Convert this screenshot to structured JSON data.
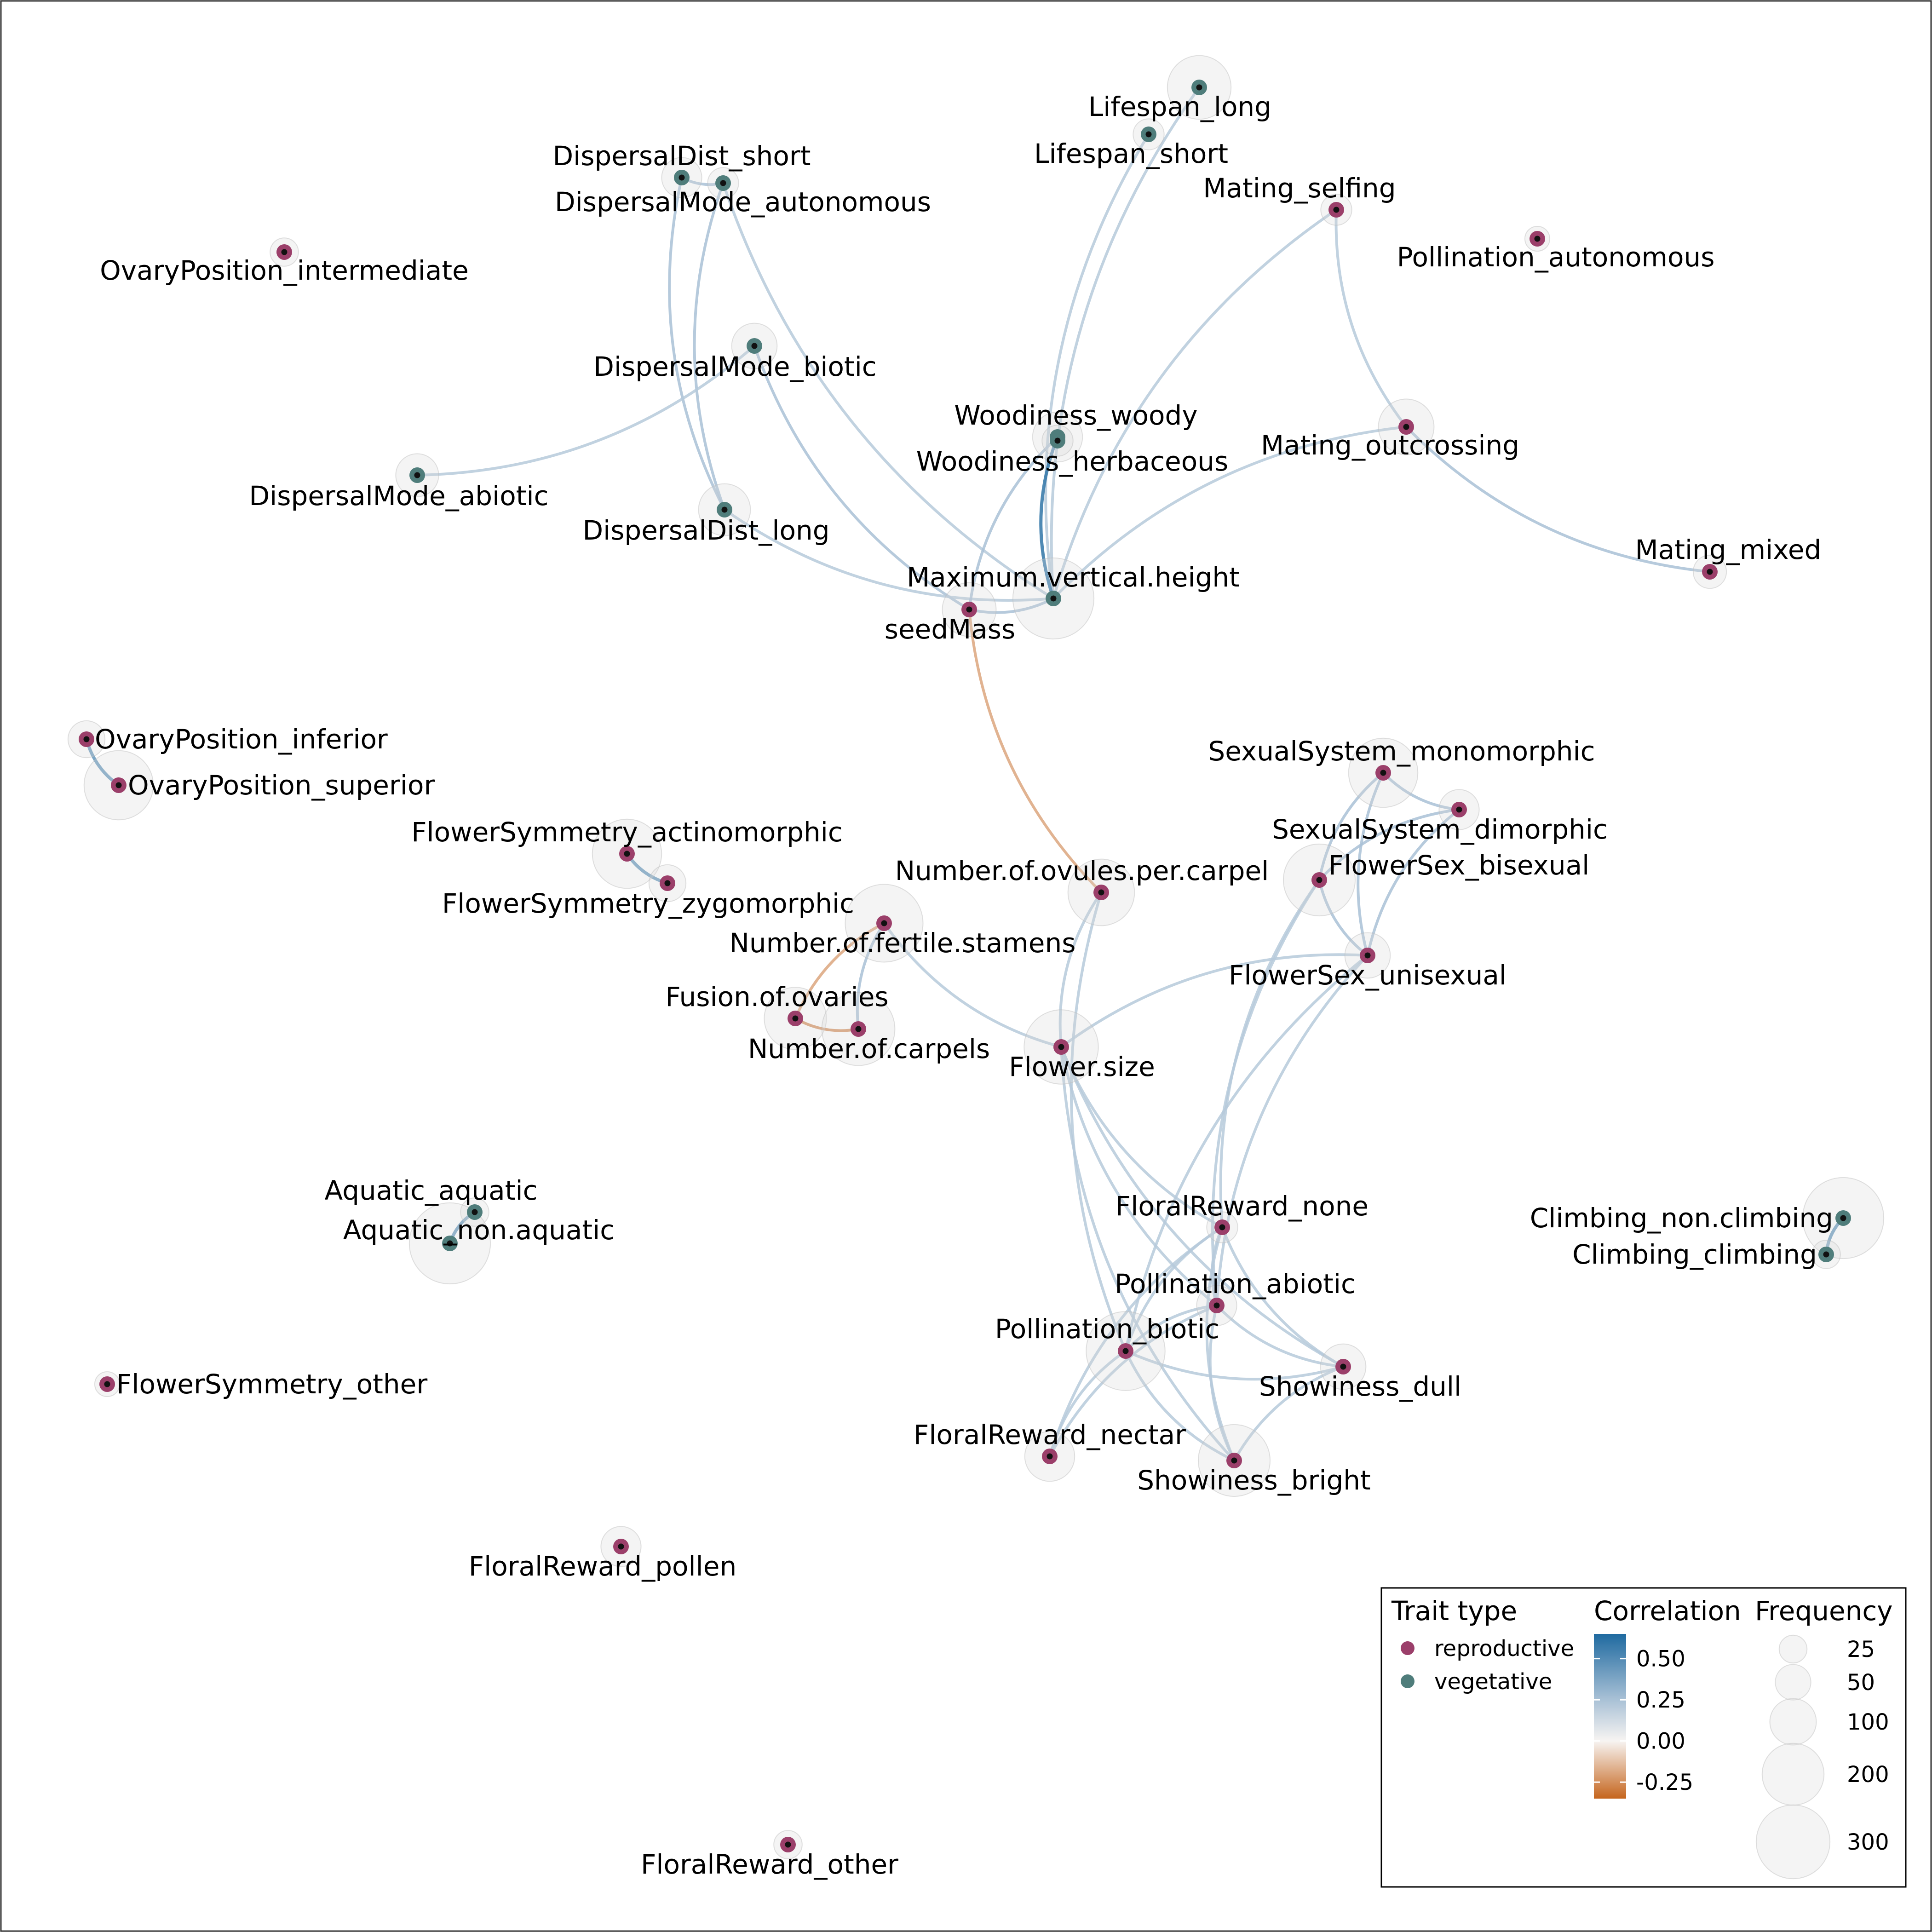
{
  "colors": {
    "reproductive": "#9b3f6a",
    "vegetative": "#4f7d7b",
    "corr_high": "#1f6aa0",
    "corr_mid": "#a9c1d6",
    "corr_zero": "#f7f4f2",
    "corr_low": "#c5651d"
  },
  "nodes": [
    {
      "id": "OvaryPosition_intermediate",
      "label": "OvaryPosition_intermediate",
      "type": "reproductive",
      "frequency": 10
    },
    {
      "id": "DispersalDist_short",
      "label": "DispersalDist_short",
      "type": "vegetative",
      "frequency": 40
    },
    {
      "id": "DispersalMode_autonomous",
      "label": "DispersalMode_autonomous",
      "type": "vegetative",
      "frequency": 15
    },
    {
      "id": "DispersalMode_biotic",
      "label": "DispersalMode_biotic",
      "type": "vegetative",
      "frequency": 60
    },
    {
      "id": "DispersalMode_abiotic",
      "label": "DispersalMode_abiotic",
      "type": "vegetative",
      "frequency": 50
    },
    {
      "id": "DispersalDist_long",
      "label": "DispersalDist_long",
      "type": "vegetative",
      "frequency": 90
    },
    {
      "id": "Lifespan_long",
      "label": "Lifespan_long",
      "type": "vegetative",
      "frequency": 160
    },
    {
      "id": "Lifespan_short",
      "label": "Lifespan_short",
      "type": "vegetative",
      "frequency": 15
    },
    {
      "id": "Mating_selfing",
      "label": "Mating_selfing",
      "type": "reproductive",
      "frequency": 15
    },
    {
      "id": "Pollination_autonomous",
      "label": "Pollination_autonomous",
      "type": "reproductive",
      "frequency": 5
    },
    {
      "id": "Woodiness_woody",
      "label": "Woodiness_woody",
      "type": "vegetative",
      "frequency": 80
    },
    {
      "id": "Woodiness_herbaceous",
      "label": "Woodiness_herbaceous",
      "type": "vegetative",
      "frequency": 15
    },
    {
      "id": "Mating_outcrossing",
      "label": "Mating_outcrossing",
      "type": "reproductive",
      "frequency": 110
    },
    {
      "id": "Maximum.vertical.height",
      "label": "Maximum.vertical.height",
      "type": "vegetative",
      "frequency": 300
    },
    {
      "id": "seedMass",
      "label": "seedMass",
      "type": "reproductive",
      "frequency": 100
    },
    {
      "id": "Mating_mixed",
      "label": "Mating_mixed",
      "type": "reproductive",
      "frequency": 20
    },
    {
      "id": "OvaryPosition_inferior",
      "label": "OvaryPosition_inferior",
      "type": "reproductive",
      "frequency": 30
    },
    {
      "id": "OvaryPosition_superior",
      "label": "OvaryPosition_superior",
      "type": "reproductive",
      "frequency": 200
    },
    {
      "id": "FlowerSymmetry_actinomorphic",
      "label": "FlowerSymmetry_actinomorphic",
      "type": "reproductive",
      "frequency": 200
    },
    {
      "id": "FlowerSymmetry_zygomorphic",
      "label": "FlowerSymmetry_zygomorphic",
      "type": "reproductive",
      "frequency": 30
    },
    {
      "id": "SexualSystem_monomorphic",
      "label": "SexualSystem_monomorphic",
      "type": "reproductive",
      "frequency": 200
    },
    {
      "id": "SexualSystem_dimorphic",
      "label": "SexualSystem_dimorphic",
      "type": "reproductive",
      "frequency": 40
    },
    {
      "id": "FlowerSex_bisexual",
      "label": "FlowerSex_bisexual",
      "type": "reproductive",
      "frequency": 220
    },
    {
      "id": "Number.of.ovules.per.carpel",
      "label": "Number.of.ovules.per.carpel",
      "type": "reproductive",
      "frequency": 180
    },
    {
      "id": "Number.of.fertile.stamens",
      "label": "Number.of.fertile.stamens",
      "type": "reproductive",
      "frequency": 270
    },
    {
      "id": "FlowerSex_unisexual",
      "label": "FlowerSex_unisexual",
      "type": "reproductive",
      "frequency": 60
    },
    {
      "id": "Fusion.of.ovaries",
      "label": "Fusion.of.ovaries",
      "type": "reproductive",
      "frequency": 150
    },
    {
      "id": "Number.of.carpels",
      "label": "Number.of.carpels",
      "type": "reproductive",
      "frequency": 230
    },
    {
      "id": "Flower.size",
      "label": "Flower.size",
      "type": "reproductive",
      "frequency": 240
    },
    {
      "id": "Aquatic_aquatic",
      "label": "Aquatic_aquatic",
      "type": "vegetative",
      "frequency": 10
    },
    {
      "id": "Aquatic_non.aquatic",
      "label": "Aquatic_non.aquatic",
      "type": "vegetative",
      "frequency": 300
    },
    {
      "id": "FloralReward_none",
      "label": "FloralReward_none",
      "type": "reproductive",
      "frequency": 15
    },
    {
      "id": "Climbing_non.climbing",
      "label": "Climbing_non.climbing",
      "type": "vegetative",
      "frequency": 300
    },
    {
      "id": "Climbing_climbing",
      "label": "Climbing_climbing",
      "type": "vegetative",
      "frequency": 10
    },
    {
      "id": "Pollination_abiotic",
      "label": "Pollination_abiotic",
      "type": "reproductive",
      "frequency": 40
    },
    {
      "id": "Pollination_biotic",
      "label": "Pollination_biotic",
      "type": "reproductive",
      "frequency": 280
    },
    {
      "id": "Showiness_dull",
      "label": "Showiness_dull",
      "type": "reproductive",
      "frequency": 60
    },
    {
      "id": "FlowerSymmetry_other",
      "label": "FlowerSymmetry_other",
      "type": "reproductive",
      "frequency": 5
    },
    {
      "id": "FloralReward_nectar",
      "label": "FloralReward_nectar",
      "type": "reproductive",
      "frequency": 80
    },
    {
      "id": "Showiness_bright",
      "label": "Showiness_bright",
      "type": "reproductive",
      "frequency": 220
    },
    {
      "id": "FloralReward_pollen",
      "label": "FloralReward_pollen",
      "type": "reproductive",
      "frequency": 40
    },
    {
      "id": "FloralReward_other",
      "label": "FloralReward_other",
      "type": "reproductive",
      "frequency": 10
    }
  ],
  "edges": [
    {
      "from": "DispersalDist_short",
      "to": "DispersalMode_autonomous",
      "corr": 0.4
    },
    {
      "from": "DispersalDist_short",
      "to": "DispersalDist_long",
      "corr": 0.35
    },
    {
      "from": "DispersalMode_autonomous",
      "to": "DispersalDist_long",
      "corr": 0.35
    },
    {
      "from": "DispersalMode_autonomous",
      "to": "Maximum.vertical.height",
      "corr": 0.2
    },
    {
      "from": "DispersalMode_abiotic",
      "to": "DispersalMode_biotic",
      "corr": 0.2
    },
    {
      "from": "DispersalMode_biotic",
      "to": "seedMass",
      "corr": 0.25
    },
    {
      "from": "DispersalDist_long",
      "to": "Maximum.vertical.height",
      "corr": 0.2
    },
    {
      "from": "Lifespan_long",
      "to": "Maximum.vertical.height",
      "corr": 0.2
    },
    {
      "from": "Lifespan_short",
      "to": "Maximum.vertical.height",
      "corr": 0.2
    },
    {
      "from": "Mating_selfing",
      "to": "Maximum.vertical.height",
      "corr": 0.2
    },
    {
      "from": "Mating_selfing",
      "to": "Mating_outcrossing",
      "corr": 0.2
    },
    {
      "from": "Mating_outcrossing",
      "to": "Mating_mixed",
      "corr": 0.25
    },
    {
      "from": "Mating_outcrossing",
      "to": "Maximum.vertical.height",
      "corr": 0.2
    },
    {
      "from": "Woodiness_woody",
      "to": "Maximum.vertical.height",
      "corr": 0.6
    },
    {
      "from": "Woodiness_woody",
      "to": "seedMass",
      "corr": 0.4
    },
    {
      "from": "seedMass",
      "to": "Maximum.vertical.height",
      "corr": 0.25
    },
    {
      "from": "seedMass",
      "to": "Number.of.ovules.per.carpel",
      "corr": -0.2
    },
    {
      "from": "OvaryPosition_inferior",
      "to": "OvaryPosition_superior",
      "corr": 0.45
    },
    {
      "from": "FlowerSymmetry_actinomorphic",
      "to": "FlowerSymmetry_zygomorphic",
      "corr": 0.45
    },
    {
      "from": "SexualSystem_monomorphic",
      "to": "SexualSystem_dimorphic",
      "corr": 0.4
    },
    {
      "from": "SexualSystem_monomorphic",
      "to": "FlowerSex_bisexual",
      "corr": 0.3
    },
    {
      "from": "SexualSystem_dimorphic",
      "to": "FlowerSex_bisexual",
      "corr": 0.3
    },
    {
      "from": "SexualSystem_monomorphic",
      "to": "FlowerSex_unisexual",
      "corr": 0.35
    },
    {
      "from": "SexualSystem_dimorphic",
      "to": "FlowerSex_unisexual",
      "corr": 0.35
    },
    {
      "from": "FlowerSex_bisexual",
      "to": "FlowerSex_unisexual",
      "corr": 0.4
    },
    {
      "from": "Number.of.fertile.stamens",
      "to": "Fusion.of.ovaries",
      "corr": -0.2
    },
    {
      "from": "Number.of.fertile.stamens",
      "to": "Number.of.carpels",
      "corr": 0.3
    },
    {
      "from": "Fusion.of.ovaries",
      "to": "Number.of.carpels",
      "corr": -0.3
    },
    {
      "from": "Number.of.fertile.stamens",
      "to": "Flower.size",
      "corr": 0.2
    },
    {
      "from": "Number.of.ovules.per.carpel",
      "to": "Flower.size",
      "corr": 0.2
    },
    {
      "from": "Number.of.ovules.per.carpel",
      "to": "Pollination_biotic",
      "corr": 0.2
    },
    {
      "from": "FlowerSex_unisexual",
      "to": "Flower.size",
      "corr": 0.2
    },
    {
      "from": "Flower.size",
      "to": "FloralReward_none",
      "corr": 0.2
    },
    {
      "from": "Flower.size",
      "to": "Pollination_abiotic",
      "corr": 0.2
    },
    {
      "from": "Flower.size",
      "to": "Showiness_bright",
      "corr": 0.2
    },
    {
      "from": "Flower.size",
      "to": "Showiness_dull",
      "corr": 0.2
    },
    {
      "from": "FlowerSex_bisexual",
      "to": "FloralReward_none",
      "corr": 0.2
    },
    {
      "from": "FlowerSex_bisexual",
      "to": "Pollination_abiotic",
      "corr": 0.2
    },
    {
      "from": "FlowerSex_unisexual",
      "to": "Pollination_abiotic",
      "corr": 0.2
    },
    {
      "from": "FlowerSex_unisexual",
      "to": "Pollination_biotic",
      "corr": 0.2
    },
    {
      "from": "FloralReward_none",
      "to": "Pollination_abiotic",
      "corr": 0.2
    },
    {
      "from": "FloralReward_none",
      "to": "Pollination_biotic",
      "corr": 0.2
    },
    {
      "from": "FloralReward_none",
      "to": "Showiness_bright",
      "corr": 0.2
    },
    {
      "from": "FloralReward_none",
      "to": "Showiness_dull",
      "corr": 0.2
    },
    {
      "from": "FloralReward_none",
      "to": "FloralReward_nectar",
      "corr": 0.2
    },
    {
      "from": "Pollination_abiotic",
      "to": "Pollination_biotic",
      "corr": 0.2
    },
    {
      "from": "Pollination_abiotic",
      "to": "Showiness_dull",
      "corr": 0.2
    },
    {
      "from": "Pollination_abiotic",
      "to": "Showiness_bright",
      "corr": 0.2
    },
    {
      "from": "Pollination_abiotic",
      "to": "FloralReward_nectar",
      "corr": 0.2
    },
    {
      "from": "Pollination_biotic",
      "to": "Showiness_dull",
      "corr": 0.2
    },
    {
      "from": "Pollination_biotic",
      "to": "Showiness_bright",
      "corr": 0.2
    },
    {
      "from": "Pollination_biotic",
      "to": "FloralReward_nectar",
      "corr": 0.2
    },
    {
      "from": "Showiness_dull",
      "to": "Showiness_bright",
      "corr": 0.2
    },
    {
      "from": "Climbing_non.climbing",
      "to": "Climbing_climbing",
      "corr": 0.45
    },
    {
      "from": "Aquatic_aquatic",
      "to": "Aquatic_non.aquatic",
      "corr": 0.45
    }
  ],
  "legend": {
    "trait_type": {
      "title": "Trait type",
      "items": [
        {
          "label": "reproductive",
          "type": "reproductive"
        },
        {
          "label": "vegetative",
          "type": "vegetative"
        }
      ]
    },
    "correlation": {
      "title": "Correlation",
      "range": [
        -0.35,
        0.65
      ],
      "ticks": [
        {
          "value": 0.5,
          "label": "0.50"
        },
        {
          "value": 0.25,
          "label": "0.25"
        },
        {
          "value": 0.0,
          "label": "0.00"
        },
        {
          "value": -0.25,
          "label": "-0.25"
        }
      ]
    },
    "frequency": {
      "title": "Frequency",
      "items": [
        {
          "value": 25,
          "label": "25"
        },
        {
          "value": 50,
          "label": "50"
        },
        {
          "value": 100,
          "label": "100"
        },
        {
          "value": 200,
          "label": "200"
        },
        {
          "value": 300,
          "label": "300"
        }
      ]
    }
  }
}
